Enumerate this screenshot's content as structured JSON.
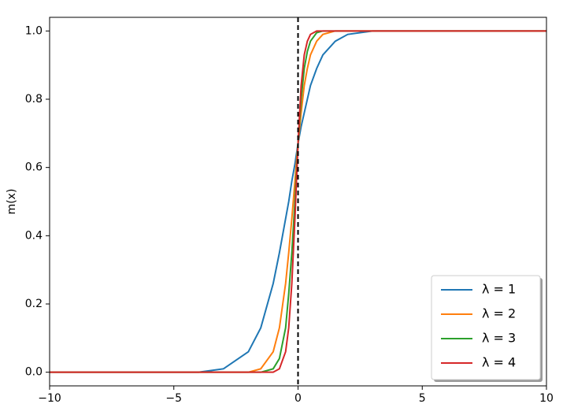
{
  "chart_data": {
    "type": "line",
    "ylabel": "m(x)",
    "x": [
      -10,
      -4,
      -3,
      -2,
      -1.5,
      -1,
      -0.75,
      -0.5,
      -0.375,
      -0.25,
      -0.125,
      0,
      0.125,
      0.25,
      0.375,
      0.5,
      0.75,
      1,
      1.5,
      2,
      3,
      10
    ],
    "series": [
      {
        "name": "λ = 1",
        "color": "#1f77b4",
        "values": [
          0,
          0,
          0.01,
          0.06,
          0.13,
          0.26,
          0.35,
          0.45,
          0.5,
          0.56,
          0.61,
          0.67,
          0.72,
          0.76,
          0.8,
          0.84,
          0.89,
          0.93,
          0.97,
          0.99,
          1,
          1
        ]
      },
      {
        "name": "λ = 2",
        "color": "#ff7f0e",
        "values": [
          0,
          0,
          0,
          0,
          0.01,
          0.06,
          0.13,
          0.26,
          0.35,
          0.45,
          0.56,
          0.67,
          0.76,
          0.84,
          0.89,
          0.93,
          0.97,
          0.99,
          1,
          1,
          1,
          1
        ]
      },
      {
        "name": "λ = 3",
        "color": "#2ca02c",
        "values": [
          0,
          0,
          0,
          0,
          0,
          0.01,
          0.04,
          0.13,
          0.23,
          0.35,
          0.5,
          0.67,
          0.8,
          0.89,
          0.94,
          0.97,
          0.995,
          1,
          1,
          1,
          1,
          1
        ]
      },
      {
        "name": "λ = 4",
        "color": "#d62728",
        "values": [
          0,
          0,
          0,
          0,
          0,
          0,
          0.01,
          0.06,
          0.13,
          0.26,
          0.45,
          0.67,
          0.84,
          0.93,
          0.97,
          0.99,
          1,
          1,
          1,
          1,
          1,
          1
        ]
      }
    ],
    "vline_x": 0,
    "xlim": [
      -10,
      10
    ],
    "xticks": [
      {
        "value": -10,
        "label": "−10"
      },
      {
        "value": -5,
        "label": "−5"
      },
      0,
      5,
      10
    ],
    "ylim": [
      -0.04,
      1.04
    ],
    "yticks": [
      {
        "value": 0,
        "label": "0.0"
      },
      0.2,
      0.4,
      0.6,
      0.8,
      {
        "value": 1,
        "label": "1.0"
      }
    ],
    "legend": "lower right"
  }
}
